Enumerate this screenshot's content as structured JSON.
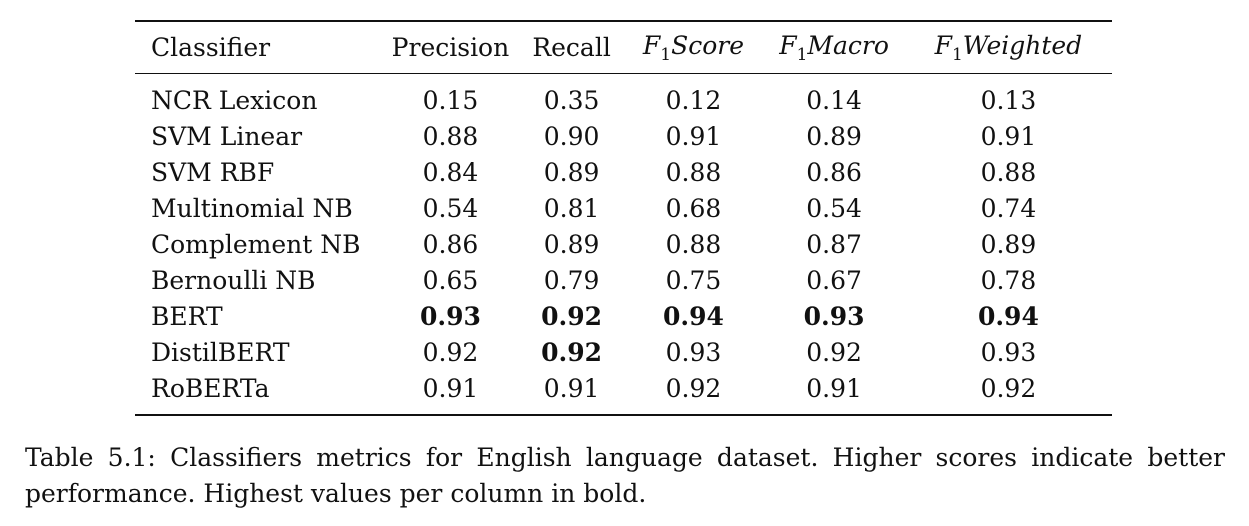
{
  "table": {
    "headers": [
      "Classifier",
      "Precision",
      "Recall",
      "F1Score",
      "F1Macro",
      "F1Weighted"
    ],
    "header_math": {
      "f1_prefix": "F",
      "f1_subscript": "1",
      "score": "Score",
      "macro": "Macro",
      "weighted": "Weighted"
    },
    "rows": [
      {
        "name": "NCR Lexicon",
        "precision": "0.15",
        "recall": "0.35",
        "f1_score": "0.12",
        "f1_macro": "0.14",
        "f1_weighted": "0.13",
        "bold": []
      },
      {
        "name": "SVM Linear",
        "precision": "0.88",
        "recall": "0.90",
        "f1_score": "0.91",
        "f1_macro": "0.89",
        "f1_weighted": "0.91",
        "bold": []
      },
      {
        "name": "SVM RBF",
        "precision": "0.84",
        "recall": "0.89",
        "f1_score": "0.88",
        "f1_macro": "0.86",
        "f1_weighted": "0.88",
        "bold": []
      },
      {
        "name": "Multinomial NB",
        "precision": "0.54",
        "recall": "0.81",
        "f1_score": "0.68",
        "f1_macro": "0.54",
        "f1_weighted": "0.74",
        "bold": []
      },
      {
        "name": "Complement NB",
        "precision": "0.86",
        "recall": "0.89",
        "f1_score": "0.88",
        "f1_macro": "0.87",
        "f1_weighted": "0.89",
        "bold": []
      },
      {
        "name": "Bernoulli NB",
        "precision": "0.65",
        "recall": "0.79",
        "f1_score": "0.75",
        "f1_macro": "0.67",
        "f1_weighted": "0.78",
        "bold": []
      },
      {
        "name": "BERT",
        "precision": "0.93",
        "recall": "0.92",
        "f1_score": "0.94",
        "f1_macro": "0.93",
        "f1_weighted": "0.94",
        "bold": [
          "precision",
          "recall",
          "f1_score",
          "f1_macro",
          "f1_weighted"
        ]
      },
      {
        "name": "DistilBERT",
        "precision": "0.92",
        "recall": "0.92",
        "f1_score": "0.93",
        "f1_macro": "0.92",
        "f1_weighted": "0.93",
        "bold": [
          "recall"
        ]
      },
      {
        "name": "RoBERTa",
        "precision": "0.91",
        "recall": "0.91",
        "f1_score": "0.92",
        "f1_macro": "0.91",
        "f1_weighted": "0.92",
        "bold": []
      }
    ]
  },
  "caption": "Table 5.1: Classifiers metrics for English language dataset. Higher scores indicate better performance. Highest values per column in bold."
}
